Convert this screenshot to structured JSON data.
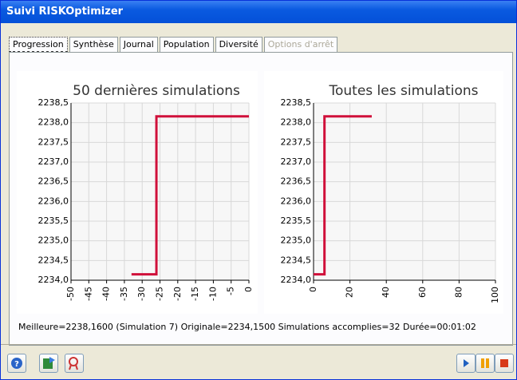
{
  "window_title": "Suivi RISKOptimizer",
  "tabs": [
    "Progression",
    "Synthèse",
    "Journal",
    "Population",
    "Diversité",
    "Options d'arrêt"
  ],
  "chart_data": [
    {
      "type": "line",
      "title": "50 dernières simulations",
      "x": [
        -33,
        -26,
        -26,
        0
      ],
      "values": [
        2234.15,
        2234.15,
        2238.16,
        2238.16
      ],
      "color": "#d0103a",
      "xlim": [
        -50,
        0
      ],
      "xticks": [
        -50,
        -45,
        -40,
        -35,
        -30,
        -25,
        -20,
        -15,
        -10,
        -5,
        0
      ],
      "ylim": [
        2234.0,
        2238.5
      ],
      "yticks": [
        {
          "value": 2234.0,
          "label": "2234,0"
        },
        {
          "value": 2234.5,
          "label": "2234,5"
        },
        {
          "value": 2235.0,
          "label": "2235,0"
        },
        {
          "value": 2235.5,
          "label": "2235,5"
        },
        {
          "value": 2236.0,
          "label": "2236,0"
        },
        {
          "value": 2236.5,
          "label": "2236,5"
        },
        {
          "value": 2237.0,
          "label": "2237,0"
        },
        {
          "value": 2237.5,
          "label": "2237,5"
        },
        {
          "value": 2238.0,
          "label": "2238,0"
        },
        {
          "value": 2238.5,
          "label": "2238,5"
        }
      ],
      "grid": true
    },
    {
      "type": "line",
      "title": "Toutes les simulations",
      "x": [
        0,
        6,
        6,
        32
      ],
      "values": [
        2234.15,
        2234.15,
        2238.16,
        2238.16
      ],
      "color": "#d0103a",
      "xlim": [
        0,
        100
      ],
      "xticks": [
        0,
        20,
        40,
        60,
        80,
        100
      ],
      "ylim": [
        2234.0,
        2238.5
      ],
      "yticks": [
        {
          "value": 2234.0,
          "label": "2234,0"
        },
        {
          "value": 2234.5,
          "label": "2234,5"
        },
        {
          "value": 2235.0,
          "label": "2235,0"
        },
        {
          "value": 2235.5,
          "label": "2235,5"
        },
        {
          "value": 2236.0,
          "label": "2236,0"
        },
        {
          "value": 2236.5,
          "label": "2236,5"
        },
        {
          "value": 2237.0,
          "label": "2237,0"
        },
        {
          "value": 2237.5,
          "label": "2237,5"
        },
        {
          "value": 2238.0,
          "label": "2238,0"
        },
        {
          "value": 2238.5,
          "label": "2238,5"
        }
      ],
      "grid": true
    }
  ],
  "status": "Meilleure=2238,1600 (Simulation 7) Originale=2234,1500 Simulations accomplies=32 Durée=00:01:02"
}
